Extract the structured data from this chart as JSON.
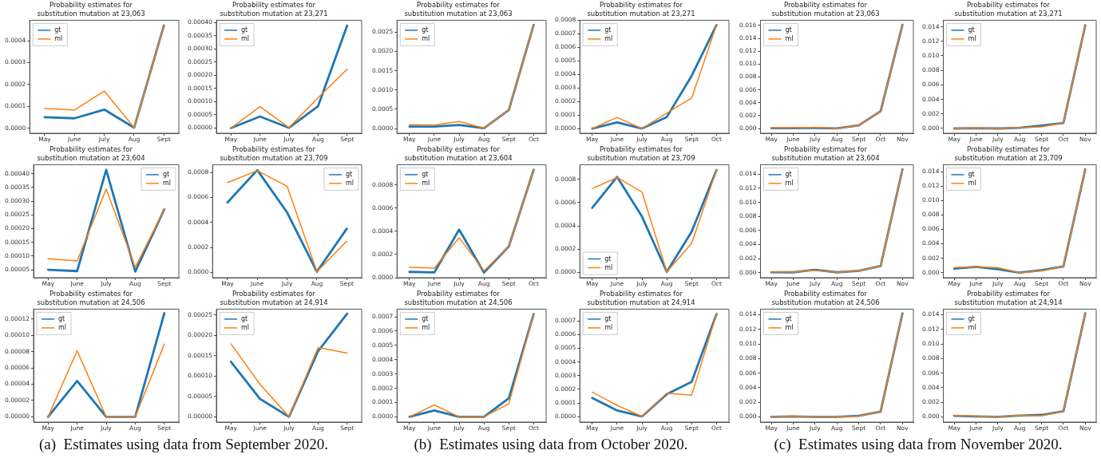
{
  "chart_data": [
    {
      "type": "line",
      "title": "Probability estimates for\nsubstitution mutation at 23,063",
      "categories": [
        "May",
        "June",
        "July",
        "Aug",
        "Sept"
      ],
      "legend": "top left",
      "ylim": [
        -2.35e-05,
        0.000494
      ],
      "yticks": [
        {
          "value": 0,
          "label": "0.0000"
        },
        {
          "value": 0.0001,
          "label": "0.0001"
        },
        {
          "value": 0.0002,
          "label": "0.0002"
        },
        {
          "value": 0.0003,
          "label": "0.0003"
        },
        {
          "value": 0.0004,
          "label": "0.0004"
        }
      ],
      "series": [
        {
          "name": "gt",
          "color": "#1f77b4",
          "values": [
            5e-05,
            4.5e-05,
            8.5e-05,
            2e-06,
            0.00047
          ]
        },
        {
          "name": "ml",
          "color": "#ff7f0e",
          "values": [
            9e-05,
            8.3e-05,
            0.00017,
            2e-06,
            0.00047
          ]
        }
      ]
    },
    {
      "type": "line",
      "title": "Probability estimates for\nsubstitution mutation at 23,271",
      "categories": [
        "May",
        "June",
        "July",
        "Aug",
        "Sept"
      ],
      "legend": "top left",
      "ylim": [
        -1.95e-05,
        0.000408
      ],
      "yticks": [
        {
          "value": 0,
          "label": "0.00000"
        },
        {
          "value": 5e-05,
          "label": "0.00005"
        },
        {
          "value": 0.0001,
          "label": "0.00010"
        },
        {
          "value": 0.00015,
          "label": "0.00015"
        },
        {
          "value": 0.0002,
          "label": "0.00020"
        },
        {
          "value": 0.00025,
          "label": "0.00025"
        },
        {
          "value": 0.0003,
          "label": "0.00030"
        },
        {
          "value": 0.00035,
          "label": "0.00035"
        },
        {
          "value": 0.0004,
          "label": "0.00040"
        }
      ],
      "series": [
        {
          "name": "gt",
          "color": "#1f77b4",
          "values": [
            0,
            4.4e-05,
            1e-06,
            8.3e-05,
            0.000388
          ]
        },
        {
          "name": "ml",
          "color": "#ff7f0e",
          "values": [
            0,
            8.1e-05,
            2e-06,
            0.000115,
            0.000223
          ]
        }
      ]
    },
    {
      "type": "line",
      "title": "Probability estimates for\nsubstitution mutation at 23,604",
      "categories": [
        "May",
        "June",
        "July",
        "Aug",
        "Sept"
      ],
      "legend": "top right",
      "ylim": [
        2.1e-05,
        0.000433
      ],
      "yticks": [
        {
          "value": 5e-05,
          "label": "0.00005"
        },
        {
          "value": 0.0001,
          "label": "0.00010"
        },
        {
          "value": 0.00015,
          "label": "0.00015"
        },
        {
          "value": 0.0002,
          "label": "0.00020"
        },
        {
          "value": 0.00025,
          "label": "0.00025"
        },
        {
          "value": 0.0003,
          "label": "0.00030"
        },
        {
          "value": 0.00035,
          "label": "0.00035"
        },
        {
          "value": 0.0004,
          "label": "0.00040"
        }
      ],
      "series": [
        {
          "name": "gt",
          "color": "#1f77b4",
          "values": [
            5e-05,
            4.5e-05,
            0.000414,
            4.3e-05,
            0.00027
          ]
        },
        {
          "name": "ml",
          "color": "#ff7f0e",
          "values": [
            9e-05,
            8.2e-05,
            0.000344,
            5.9e-05,
            0.00027
          ]
        }
      ]
    },
    {
      "type": "line",
      "title": "Probability estimates for\nsubstitution mutation at 23,709",
      "categories": [
        "May",
        "June",
        "July",
        "Aug",
        "Sept"
      ],
      "legend": "top right",
      "ylim": [
        -4.25e-05,
        0.000863
      ],
      "yticks": [
        {
          "value": 0,
          "label": "0.0000"
        },
        {
          "value": 0.0002,
          "label": "0.0002"
        },
        {
          "value": 0.0004,
          "label": "0.0004"
        },
        {
          "value": 0.0006,
          "label": "0.0006"
        },
        {
          "value": 0.0008,
          "label": "0.0008"
        }
      ],
      "series": [
        {
          "name": "gt",
          "color": "#1f77b4",
          "values": [
            0.00056,
            0.00082,
            0.00048,
            5e-06,
            0.00035
          ]
        },
        {
          "name": "ml",
          "color": "#ff7f0e",
          "values": [
            0.00072,
            0.000815,
            0.00069,
            5e-06,
            0.00025
          ]
        }
      ]
    },
    {
      "type": "line",
      "title": "Probability estimates for\nsubstitution mutation at 24,506",
      "categories": [
        "May",
        "June",
        "July",
        "Aug",
        "Sept"
      ],
      "legend": "top left",
      "ylim": [
        -6.5e-06,
        0.000132
      ],
      "yticks": [
        {
          "value": 0,
          "label": "0.00000"
        },
        {
          "value": 2e-05,
          "label": "0.00002"
        },
        {
          "value": 4e-05,
          "label": "0.00004"
        },
        {
          "value": 6e-05,
          "label": "0.00006"
        },
        {
          "value": 8e-05,
          "label": "0.00008"
        },
        {
          "value": 0.0001,
          "label": "0.00010"
        },
        {
          "value": 0.00012,
          "label": "0.00012"
        }
      ],
      "annotations": [
        "(a)  Estimates using data from September 2020."
      ],
      "series": [
        {
          "name": "gt",
          "color": "#1f77b4",
          "values": [
            0,
            4.4e-05,
            0,
            0,
            0.000127
          ]
        },
        {
          "name": "ml",
          "color": "#ff7f0e",
          "values": [
            0,
            8.1e-05,
            0,
            0,
            8.9e-05
          ]
        }
      ]
    },
    {
      "type": "line",
      "title": "Probability estimates for\nsubstitution mutation at 24,914",
      "categories": [
        "May",
        "June",
        "July",
        "Aug",
        "Sept"
      ],
      "legend": "top left",
      "ylim": [
        -1.3e-05,
        0.000264
      ],
      "yticks": [
        {
          "value": 0,
          "label": "0.00000"
        },
        {
          "value": 5e-05,
          "label": "0.00005"
        },
        {
          "value": 0.0001,
          "label": "0.00010"
        },
        {
          "value": 0.00015,
          "label": "0.00015"
        },
        {
          "value": 0.0002,
          "label": "0.00020"
        },
        {
          "value": 0.00025,
          "label": "0.00025"
        }
      ],
      "series": [
        {
          "name": "gt",
          "color": "#1f77b4",
          "values": [
            0.000135,
            4.4e-05,
            0,
            0.000161,
            0.000253
          ]
        },
        {
          "name": "ml",
          "color": "#ff7f0e",
          "values": [
            0.000179,
            8e-05,
            0,
            0.00017,
            0.000156
          ]
        }
      ]
    },
    {
      "type": "line",
      "title": "Probability estimates for\nsubstitution mutation at 23,063",
      "categories": [
        "May",
        "June",
        "July",
        "Aug",
        "Sept",
        "Oct"
      ],
      "legend": "top left",
      "ylim": [
        -0.000124,
        0.00281
      ],
      "yticks": [
        {
          "value": 0,
          "label": "0.0000"
        },
        {
          "value": 0.0005,
          "label": "0.0005"
        },
        {
          "value": 0.001,
          "label": "0.0010"
        },
        {
          "value": 0.0015,
          "label": "0.0015"
        },
        {
          "value": 0.002,
          "label": "0.0020"
        },
        {
          "value": 0.0025,
          "label": "0.0025"
        }
      ],
      "series": [
        {
          "name": "gt",
          "color": "#1f77b4",
          "values": [
            5e-05,
            5e-05,
            9e-05,
            1e-05,
            0.00048,
            0.00269
          ]
        },
        {
          "name": "ml",
          "color": "#ff7f0e",
          "values": [
            0.0001,
            9e-05,
            0.00018,
            1e-05,
            0.00048,
            0.00269
          ]
        }
      ]
    },
    {
      "type": "line",
      "title": "Probability estimates for\nsubstitution mutation at 23,271",
      "categories": [
        "May",
        "June",
        "July",
        "Aug",
        "Sept",
        "Oct"
      ],
      "legend": "top left",
      "ylim": [
        -3.5e-05,
        0.0008
      ],
      "yticks": [
        {
          "value": 0,
          "label": "0.0000"
        },
        {
          "value": 0.0001,
          "label": "0.0001"
        },
        {
          "value": 0.0002,
          "label": "0.0002"
        },
        {
          "value": 0.0003,
          "label": "0.0003"
        },
        {
          "value": 0.0004,
          "label": "0.0004"
        },
        {
          "value": 0.0005,
          "label": "0.0005"
        },
        {
          "value": 0.0006,
          "label": "0.0006"
        },
        {
          "value": 0.0007,
          "label": "0.0007"
        },
        {
          "value": 0.0008,
          "label": "0.0008"
        }
      ],
      "series": [
        {
          "name": "gt",
          "color": "#1f77b4",
          "values": [
            0,
            4.5e-05,
            0,
            8.5e-05,
            0.00039,
            0.000765
          ]
        },
        {
          "name": "ml",
          "color": "#ff7f0e",
          "values": [
            0,
            8.2e-05,
            0,
            0.000115,
            0.000225,
            0.000765
          ]
        }
      ]
    },
    {
      "type": "line",
      "title": "Probability estimates for\nsubstitution mutation at 23,604",
      "categories": [
        "May",
        "June",
        "July",
        "Aug",
        "Sept",
        "Oct"
      ],
      "legend": "top left",
      "ylim": [
        0,
        0.000974
      ],
      "yticks": [
        {
          "value": 0,
          "label": "0.0000"
        },
        {
          "value": 0.0002,
          "label": "0.0002"
        },
        {
          "value": 0.0004,
          "label": "0.0004"
        },
        {
          "value": 0.0006,
          "label": "0.0006"
        },
        {
          "value": 0.0008,
          "label": "0.0008"
        }
      ],
      "series": [
        {
          "name": "gt",
          "color": "#1f77b4",
          "values": [
            5e-05,
            4.5e-05,
            0.000414,
            4.5e-05,
            0.00027,
            0.00093
          ]
        },
        {
          "name": "ml",
          "color": "#ff7f0e",
          "values": [
            9e-05,
            8.2e-05,
            0.000345,
            5.9e-05,
            0.00027,
            0.00093
          ]
        }
      ]
    },
    {
      "type": "line",
      "title": "Probability estimates for\nsubstitution mutation at 23,709",
      "categories": [
        "May",
        "June",
        "July",
        "Aug",
        "Sept",
        "Oct"
      ],
      "legend": "bottom left",
      "ylim": [
        -4.5e-05,
        0.000925
      ],
      "yticks": [
        {
          "value": 0,
          "label": "0.0000"
        },
        {
          "value": 0.0002,
          "label": "0.0002"
        },
        {
          "value": 0.0004,
          "label": "0.0004"
        },
        {
          "value": 0.0006,
          "label": "0.0006"
        },
        {
          "value": 0.0008,
          "label": "0.0008"
        }
      ],
      "series": [
        {
          "name": "gt",
          "color": "#1f77b4",
          "values": [
            0.000555,
            0.00082,
            0.00048,
            5e-06,
            0.00035,
            0.00088
          ]
        },
        {
          "name": "ml",
          "color": "#ff7f0e",
          "values": [
            0.00072,
            0.000815,
            0.00069,
            5e-06,
            0.00025,
            0.00088
          ]
        }
      ]
    },
    {
      "type": "line",
      "title": "Probability estimates for\nsubstitution mutation at 24,506",
      "categories": [
        "May",
        "June",
        "July",
        "Aug",
        "Sept",
        "Oct"
      ],
      "legend": "top left",
      "ylim": [
        -3.7e-05,
        0.000754
      ],
      "yticks": [
        {
          "value": 0,
          "label": "0.0000"
        },
        {
          "value": 0.0001,
          "label": "0.0001"
        },
        {
          "value": 0.0002,
          "label": "0.0002"
        },
        {
          "value": 0.0003,
          "label": "0.0003"
        },
        {
          "value": 0.0004,
          "label": "0.0004"
        },
        {
          "value": 0.0005,
          "label": "0.0005"
        },
        {
          "value": 0.0006,
          "label": "0.0006"
        },
        {
          "value": 0.0007,
          "label": "0.0007"
        }
      ],
      "annotations": [
        "(b)  Estimates using data from October 2020."
      ],
      "series": [
        {
          "name": "gt",
          "color": "#1f77b4",
          "values": [
            0,
            4.5e-05,
            0,
            0,
            0.00013,
            0.00072
          ]
        },
        {
          "name": "ml",
          "color": "#ff7f0e",
          "values": [
            0,
            8.3e-05,
            0,
            0,
            9.2e-05,
            0.00072
          ]
        }
      ]
    },
    {
      "type": "line",
      "title": "Probability estimates for\nsubstitution mutation at 24,914",
      "categories": [
        "May",
        "June",
        "July",
        "Aug",
        "Sept",
        "Oct"
      ],
      "legend": "top left",
      "ylim": [
        -3.9e-05,
        0.000785
      ],
      "yticks": [
        {
          "value": 0,
          "label": "0.0000"
        },
        {
          "value": 0.0001,
          "label": "0.0001"
        },
        {
          "value": 0.0002,
          "label": "0.0002"
        },
        {
          "value": 0.0003,
          "label": "0.0003"
        },
        {
          "value": 0.0004,
          "label": "0.0004"
        },
        {
          "value": 0.0005,
          "label": "0.0005"
        },
        {
          "value": 0.0006,
          "label": "0.0006"
        },
        {
          "value": 0.0007,
          "label": "0.0007"
        }
      ],
      "series": [
        {
          "name": "gt",
          "color": "#1f77b4",
          "values": [
            0.000137,
            4.6e-05,
            2e-06,
            0.000165,
            0.000255,
            0.00075
          ]
        },
        {
          "name": "ml",
          "color": "#ff7f0e",
          "values": [
            0.00018,
            8.3e-05,
            3e-06,
            0.000172,
            0.000158,
            0.00075
          ]
        }
      ]
    },
    {
      "type": "line",
      "title": "Probability estimates for\nsubstitution mutation at 23,063",
      "categories": [
        "May",
        "June",
        "July",
        "Aug",
        "Sept",
        "Oct",
        "Nov"
      ],
      "legend": "top left",
      "ylim": [
        -0.00074,
        0.0168
      ],
      "yticks": [
        {
          "value": 0,
          "label": "0.000"
        },
        {
          "value": 0.002,
          "label": "0.002"
        },
        {
          "value": 0.004,
          "label": "0.004"
        },
        {
          "value": 0.006,
          "label": "0.006"
        },
        {
          "value": 0.008,
          "label": "0.008"
        },
        {
          "value": 0.01,
          "label": "0.010"
        },
        {
          "value": 0.012,
          "label": "0.012"
        },
        {
          "value": 0.014,
          "label": "0.014"
        },
        {
          "value": 0.016,
          "label": "0.016"
        }
      ],
      "series": [
        {
          "name": "gt",
          "color": "#1f77b4",
          "values": [
            5e-05,
            5e-05,
            9e-05,
            1e-05,
            0.00048,
            0.00269,
            0.0161
          ]
        },
        {
          "name": "ml",
          "color": "#ff7f0e",
          "values": [
            0.0001,
            9e-05,
            0.00018,
            1e-05,
            0.00048,
            0.00269,
            0.0161
          ]
        }
      ]
    },
    {
      "type": "line",
      "title": "Probability estimates for\nsubstitution mutation at 23,271",
      "categories": [
        "May",
        "June",
        "July",
        "Aug",
        "Sept",
        "Oct",
        "Nov"
      ],
      "legend": "top left",
      "ylim": [
        -0.00066,
        0.0149
      ],
      "yticks": [
        {
          "value": 0,
          "label": "0.000"
        },
        {
          "value": 0.002,
          "label": "0.002"
        },
        {
          "value": 0.004,
          "label": "0.004"
        },
        {
          "value": 0.006,
          "label": "0.006"
        },
        {
          "value": 0.008,
          "label": "0.008"
        },
        {
          "value": 0.01,
          "label": "0.010"
        },
        {
          "value": 0.012,
          "label": "0.012"
        },
        {
          "value": 0.014,
          "label": "0.014"
        }
      ],
      "series": [
        {
          "name": "gt",
          "color": "#1f77b4",
          "values": [
            0,
            4.5e-05,
            0,
            8.5e-05,
            0.00039,
            0.000765,
            0.0142
          ]
        },
        {
          "name": "ml",
          "color": "#ff7f0e",
          "values": [
            0,
            8.2e-05,
            0,
            0.000115,
            0.000225,
            0.000765,
            0.0142
          ]
        }
      ]
    },
    {
      "type": "line",
      "title": "Probability estimates for\nsubstitution mutation at 23,604",
      "categories": [
        "May",
        "June",
        "July",
        "Aug",
        "Sept",
        "Oct",
        "Nov"
      ],
      "legend": "top left",
      "ylim": [
        -0.00072,
        0.01536
      ],
      "yticks": [
        {
          "value": 0,
          "label": "0.000"
        },
        {
          "value": 0.002,
          "label": "0.002"
        },
        {
          "value": 0.004,
          "label": "0.004"
        },
        {
          "value": 0.006,
          "label": "0.006"
        },
        {
          "value": 0.008,
          "label": "0.008"
        },
        {
          "value": 0.01,
          "label": "0.010"
        },
        {
          "value": 0.012,
          "label": "0.012"
        },
        {
          "value": 0.014,
          "label": "0.014"
        }
      ],
      "series": [
        {
          "name": "gt",
          "color": "#1f77b4",
          "values": [
            5e-05,
            4.5e-05,
            0.00041,
            4.5e-05,
            0.00027,
            0.00093,
            0.0147
          ]
        },
        {
          "name": "ml",
          "color": "#ff7f0e",
          "values": [
            9e-05,
            8.2e-05,
            0.000345,
            5.9e-05,
            0.00027,
            0.00093,
            0.0147
          ]
        }
      ]
    },
    {
      "type": "line",
      "title": "Probability estimates for\nsubstitution mutation at 23,709",
      "categories": [
        "May",
        "June",
        "July",
        "Aug",
        "Sept",
        "Oct",
        "Nov"
      ],
      "legend": "top left",
      "ylim": [
        -0.00069,
        0.01495
      ],
      "yticks": [
        {
          "value": 0,
          "label": "0.000"
        },
        {
          "value": 0.002,
          "label": "0.002"
        },
        {
          "value": 0.004,
          "label": "0.004"
        },
        {
          "value": 0.006,
          "label": "0.006"
        },
        {
          "value": 0.008,
          "label": "0.008"
        },
        {
          "value": 0.01,
          "label": "0.010"
        },
        {
          "value": 0.012,
          "label": "0.012"
        },
        {
          "value": 0.014,
          "label": "0.014"
        }
      ],
      "series": [
        {
          "name": "gt",
          "color": "#1f77b4",
          "values": [
            0.000555,
            0.00082,
            0.00048,
            5e-06,
            0.00035,
            0.00088,
            0.0143
          ]
        },
        {
          "name": "ml",
          "color": "#ff7f0e",
          "values": [
            0.00072,
            0.000815,
            0.00069,
            5e-06,
            0.00025,
            0.00088,
            0.0143
          ]
        }
      ]
    },
    {
      "type": "line",
      "title": "Probability estimates for\nsubstitution mutation at 24,506",
      "categories": [
        "May",
        "June",
        "July",
        "Aug",
        "Sept",
        "Oct",
        "Nov"
      ],
      "legend": "top left",
      "ylim": [
        -0.00073,
        0.01478
      ],
      "yticks": [
        {
          "value": 0,
          "label": "0.000"
        },
        {
          "value": 0.002,
          "label": "0.002"
        },
        {
          "value": 0.004,
          "label": "0.004"
        },
        {
          "value": 0.006,
          "label": "0.006"
        },
        {
          "value": 0.008,
          "label": "0.008"
        },
        {
          "value": 0.01,
          "label": "0.010"
        },
        {
          "value": 0.012,
          "label": "0.012"
        },
        {
          "value": 0.014,
          "label": "0.014"
        }
      ],
      "annotations": [
        "(c)  Estimates using data from November 2020."
      ],
      "series": [
        {
          "name": "gt",
          "color": "#1f77b4",
          "values": [
            0,
            4.5e-05,
            0,
            0,
            0.00013,
            0.00072,
            0.0142
          ]
        },
        {
          "name": "ml",
          "color": "#ff7f0e",
          "values": [
            0,
            8.3e-05,
            0,
            0,
            9.2e-05,
            0.00072,
            0.0142
          ]
        }
      ]
    },
    {
      "type": "line",
      "title": "Probability estimates for\nsubstitution mutation at 24,914",
      "categories": [
        "May",
        "June",
        "July",
        "Aug",
        "Sept",
        "Oct",
        "Nov"
      ],
      "legend": "top left",
      "ylim": [
        -0.00073,
        0.01478
      ],
      "yticks": [
        {
          "value": 0,
          "label": "0.000"
        },
        {
          "value": 0.002,
          "label": "0.002"
        },
        {
          "value": 0.004,
          "label": "0.004"
        },
        {
          "value": 0.006,
          "label": "0.006"
        },
        {
          "value": 0.008,
          "label": "0.008"
        },
        {
          "value": 0.01,
          "label": "0.010"
        },
        {
          "value": 0.012,
          "label": "0.012"
        },
        {
          "value": 0.014,
          "label": "0.014"
        }
      ],
      "series": [
        {
          "name": "gt",
          "color": "#1f77b4",
          "values": [
            0.000137,
            4.6e-05,
            2e-06,
            0.000165,
            0.000255,
            0.00075,
            0.0142
          ]
        },
        {
          "name": "ml",
          "color": "#ff7f0e",
          "values": [
            0.00018,
            8.3e-05,
            3e-06,
            0.000172,
            0.000158,
            0.00075,
            0.0142
          ]
        }
      ]
    }
  ]
}
